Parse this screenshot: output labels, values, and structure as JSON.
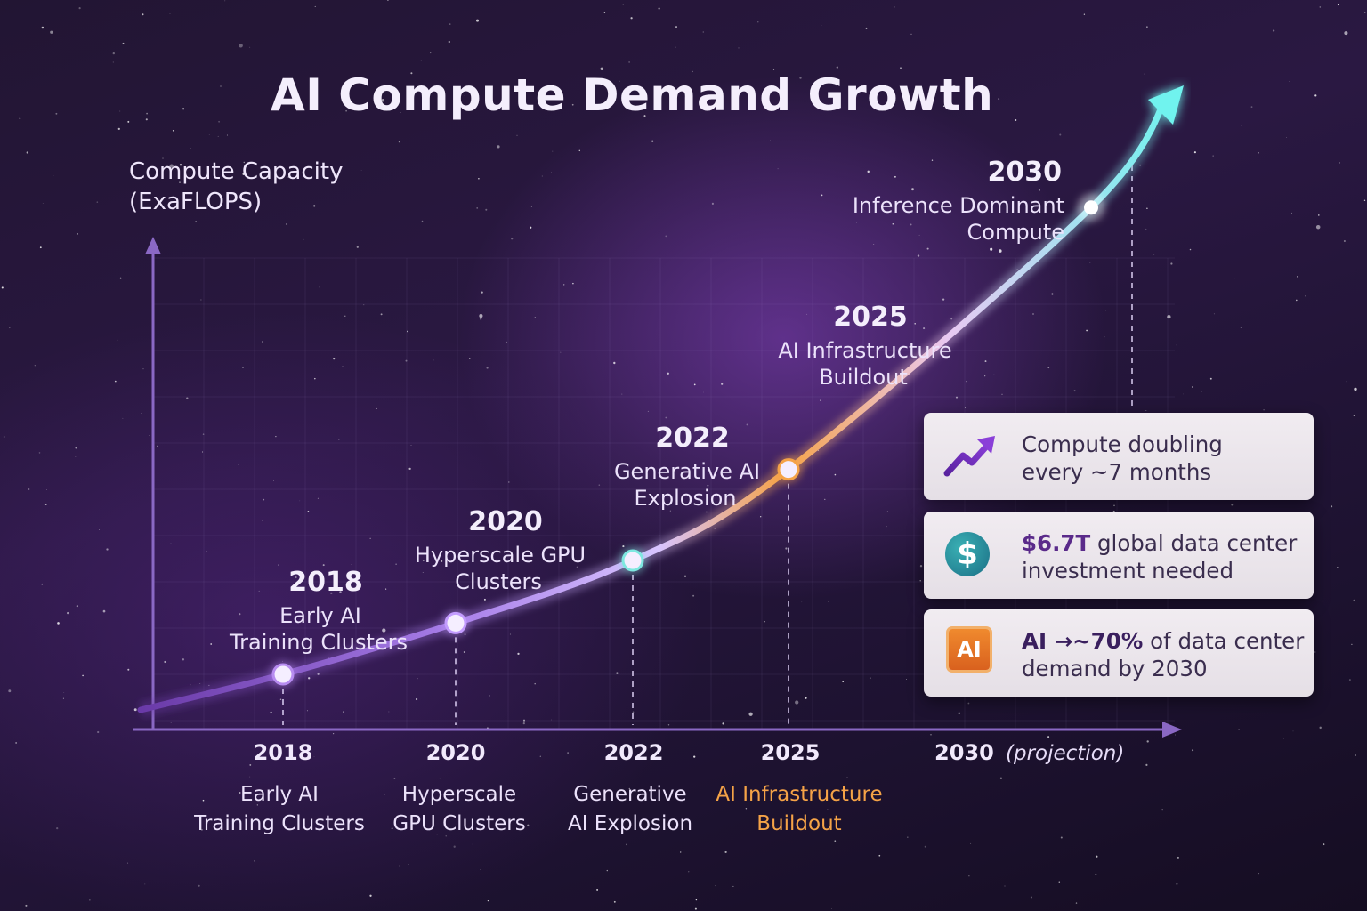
{
  "title": "AI Compute Demand Growth",
  "y_axis_label_line1": "Compute Capacity",
  "y_axis_label_line2": "(ExaFLOPS)",
  "colors": {
    "curve_start": "#8a4fd6",
    "curve_mid": "#c9a9ff",
    "curve_orange": "#f5a347",
    "curve_end": "#6ff3ee",
    "axis": "#8a68c4",
    "highlight_label": "#f5a347"
  },
  "chart_data": {
    "type": "line",
    "title": "AI Compute Demand Growth",
    "ylabel": "Compute Capacity (ExaFLOPS)",
    "xlabel": "",
    "series": [
      {
        "points": [
          {
            "x": 2018,
            "y": 1.0
          },
          {
            "x": 2020,
            "y": 2.8
          },
          {
            "x": 2022,
            "y": 5.0
          },
          {
            "x": 2025,
            "y": 8.2
          },
          {
            "x": 2030,
            "y": 17.4
          }
        ]
      }
    ],
    "milestones": [
      {
        "year_label": "2018",
        "line1": "Early AI",
        "line2": "Training Clusters"
      },
      {
        "year_label": "2020",
        "line1": "Hyperscale GPU",
        "line2": "Clusters"
      },
      {
        "year_label": "2022",
        "line1": "Generative AI",
        "line2": "Explosion"
      },
      {
        "year_label": "2025",
        "line1": "AI Infrastructure",
        "line2": "Buildout"
      },
      {
        "year_label": "2030",
        "line1": "Inference Dominant",
        "line2": "Compute"
      }
    ],
    "x_ticks": [
      {
        "year": "2018",
        "label1": "Early AI",
        "label2": "Training Clusters",
        "highlight": false
      },
      {
        "year": "2020",
        "label1": "Hyperscale",
        "label2": "GPU Clusters",
        "highlight": false
      },
      {
        "year": "2022",
        "label1": "Generative",
        "label2": "AI Explosion",
        "highlight": false
      },
      {
        "year": "2025",
        "label1": "AI Infrastructure",
        "label2": "Buildout",
        "highlight": true
      },
      {
        "year": "2030",
        "suffix": "(projection)",
        "highlight": false
      }
    ],
    "grid": true,
    "trend": "exponential"
  },
  "panels": {
    "doubling": {
      "line1": "Compute doubling",
      "line2": "every ~7 months",
      "icon": "trend-up-arrow-icon"
    },
    "investment": {
      "strong": "$6.7T",
      "line1_rest": " global data center",
      "line2": "investment needed",
      "icon": "dollar-icon",
      "icon_text": "$"
    },
    "ai_share": {
      "strong": "AI →~70%",
      "line1_rest": " of data center",
      "line2": "demand by 2030",
      "icon": "ai-chip-icon",
      "icon_text": "AI"
    }
  }
}
